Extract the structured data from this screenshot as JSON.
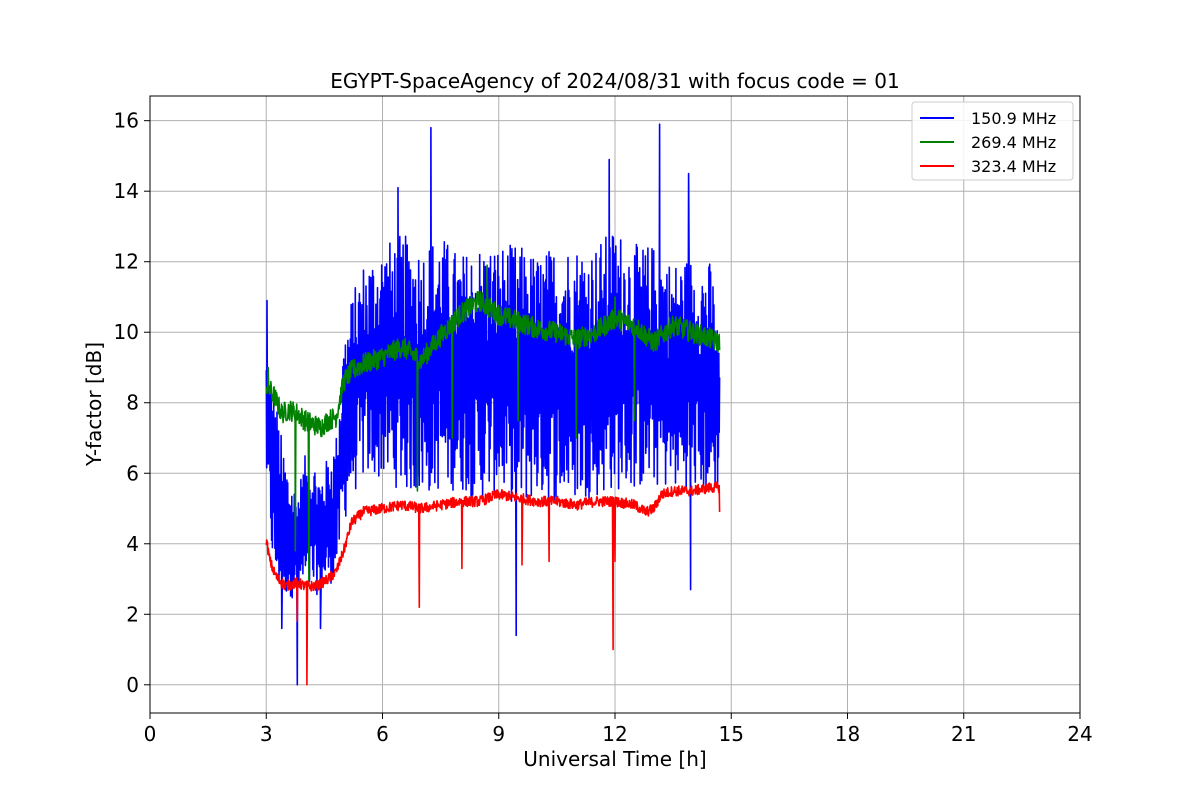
{
  "chart_data": {
    "type": "line",
    "title": "EGYPT-SpaceAgency of 2024/08/31 with focus code = 01",
    "xlabel": "Universal Time [h]",
    "ylabel": "Y-factor [dB]",
    "xlim": [
      0,
      24
    ],
    "ylim": [
      -0.8,
      16.7
    ],
    "xticks": [
      0,
      3,
      6,
      9,
      12,
      15,
      18,
      21,
      24
    ],
    "yticks": [
      0,
      2,
      4,
      6,
      8,
      10,
      12,
      14,
      16
    ],
    "grid": true,
    "legend_position": "top-right",
    "series": [
      {
        "name": "150.9 MHz",
        "color": "#0000ff",
        "x": [
          3.0,
          3.2,
          3.4,
          3.6,
          3.8,
          4.0,
          4.2,
          4.4,
          4.6,
          4.8,
          5.0,
          5.2,
          5.5,
          6.0,
          6.5,
          7.0,
          7.5,
          8.0,
          8.5,
          9.0,
          9.5,
          10.0,
          10.5,
          11.0,
          11.5,
          12.0,
          12.5,
          13.0,
          13.5,
          14.0,
          14.5,
          14.7
        ],
        "low": [
          5.8,
          2.7,
          2.5,
          2.5,
          2.4,
          2.5,
          2.5,
          2.6,
          2.8,
          3.0,
          4.5,
          5.3,
          5.8,
          5.8,
          5.5,
          5.3,
          5.5,
          5.5,
          5.2,
          5.5,
          5.0,
          5.3,
          5.2,
          5.2,
          5.3,
          5.5,
          5.5,
          5.6,
          5.5,
          5.5,
          5.3,
          5.6
        ],
        "high": [
          9.5,
          8.5,
          7.0,
          6.0,
          5.5,
          6.5,
          6.5,
          6.0,
          6.5,
          7.0,
          10.0,
          11.0,
          12.0,
          12.5,
          12.8,
          12.5,
          12.8,
          12.2,
          12.5,
          12.5,
          12.5,
          12.2,
          12.5,
          12.5,
          12.5,
          13.0,
          12.5,
          12.5,
          12.0,
          12.2,
          12.0,
          9.5
        ],
        "spikes": [
          [
            3.02,
            10.9
          ],
          [
            6.4,
            14.1
          ],
          [
            7.25,
            15.8
          ],
          [
            11.85,
            14.9
          ],
          [
            13.15,
            15.9
          ],
          [
            13.9,
            14.5
          ],
          [
            3.4,
            1.6
          ],
          [
            3.8,
            0.0
          ],
          [
            4.4,
            1.6
          ],
          [
            9.45,
            1.4
          ],
          [
            13.95,
            2.7
          ]
        ]
      },
      {
        "name": "269.4 MHz",
        "color": "#008000",
        "x": [
          3.0,
          3.2,
          3.4,
          3.6,
          3.8,
          4.0,
          4.2,
          4.4,
          4.6,
          4.8,
          5.0,
          5.2,
          5.5,
          6.0,
          6.5,
          7.0,
          7.5,
          8.0,
          8.5,
          9.0,
          9.5,
          10.0,
          10.5,
          11.0,
          11.5,
          12.0,
          12.5,
          13.0,
          13.5,
          14.0,
          14.5,
          14.7
        ],
        "y": [
          8.5,
          8.2,
          7.7,
          7.8,
          7.7,
          7.5,
          7.4,
          7.3,
          7.5,
          7.6,
          8.6,
          8.9,
          9.1,
          9.3,
          9.6,
          9.2,
          9.9,
          10.5,
          10.9,
          10.5,
          10.3,
          10.1,
          10.0,
          9.8,
          10.0,
          10.4,
          10.2,
          9.7,
          10.2,
          10.0,
          9.8,
          9.7
        ],
        "noise": 0.3,
        "spikes": [
          [
            3.05,
            9.0
          ],
          [
            3.75,
            3.8
          ],
          [
            4.1,
            2.8
          ],
          [
            6.9,
            5.5
          ],
          [
            7.8,
            7.0
          ],
          [
            8.7,
            11.9
          ],
          [
            9.5,
            7.5
          ],
          [
            11.0,
            7.0
          ],
          [
            12.0,
            11.0
          ],
          [
            12.5,
            7.5
          ]
        ]
      },
      {
        "name": "323.4 MHz",
        "color": "#ff0000",
        "x": [
          3.0,
          3.1,
          3.2,
          3.3,
          3.5,
          3.8,
          4.0,
          4.3,
          4.6,
          4.8,
          5.0,
          5.2,
          5.5,
          6.0,
          6.5,
          7.0,
          7.5,
          8.0,
          8.5,
          9.0,
          9.5,
          10.0,
          10.5,
          11.0,
          11.5,
          12.0,
          12.5,
          12.8,
          13.0,
          13.2,
          13.5,
          14.0,
          14.5,
          14.7
        ],
        "y": [
          4.1,
          3.5,
          3.2,
          3.0,
          2.8,
          2.9,
          2.8,
          2.8,
          3.0,
          3.2,
          3.8,
          4.6,
          4.9,
          5.0,
          5.1,
          5.0,
          5.1,
          5.2,
          5.2,
          5.4,
          5.3,
          5.2,
          5.2,
          5.1,
          5.2,
          5.2,
          5.1,
          4.9,
          5.0,
          5.4,
          5.5,
          5.5,
          5.6,
          5.6
        ],
        "noise": 0.15,
        "spikes": [
          [
            3.8,
            1.8
          ],
          [
            4.05,
            0.0
          ],
          [
            6.95,
            2.2
          ],
          [
            8.05,
            3.3
          ],
          [
            9.6,
            3.4
          ],
          [
            10.3,
            3.5
          ],
          [
            11.95,
            1.0
          ],
          [
            12.0,
            3.5
          ],
          [
            14.7,
            4.9
          ]
        ]
      }
    ]
  }
}
